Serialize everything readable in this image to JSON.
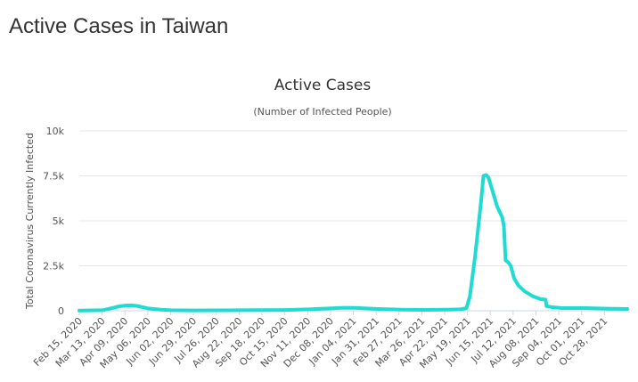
{
  "page": {
    "title": "Active Cases in Taiwan"
  },
  "colors": {
    "series": "#1fdbd1",
    "grid": "#e6e6e6",
    "text": "#333333"
  },
  "chart_data": {
    "type": "line",
    "title": "Active Cases",
    "subtitle": "(Number of Infected People)",
    "ylabel": "Total Coronavirus Currently Infected",
    "ylim": [
      0,
      10000
    ],
    "yticks": [
      {
        "value": 0,
        "label": "0"
      },
      {
        "value": 2500,
        "label": "2.5k"
      },
      {
        "value": 5000,
        "label": "5k"
      },
      {
        "value": 7500,
        "label": "7.5k"
      },
      {
        "value": 10000,
        "label": "10k"
      }
    ],
    "xlim": [
      "2020-02-15",
      "2021-11-20"
    ],
    "xticks": [
      "Feb 15, 2020",
      "Mar 13, 2020",
      "Apr 09, 2020",
      "May 06, 2020",
      "Jun 02, 2020",
      "Jun 29, 2020",
      "Jul 26, 2020",
      "Aug 22, 2020",
      "Sep 18, 2020",
      "Oct 15, 2020",
      "Nov 11, 2020",
      "Dec 08, 2020",
      "Jan 04, 2021",
      "Jan 31, 2021",
      "Feb 27, 2021",
      "Mar 26, 2021",
      "Apr 22, 2021",
      "May 19, 2021",
      "Jun 15, 2021",
      "Jul 12, 2021",
      "Aug 08, 2021",
      "Sep 04, 2021",
      "Oct 01, 2021",
      "Oct 28, 2021"
    ],
    "grid": true,
    "legend": false,
    "series": [
      {
        "color": "#1fdbd1",
        "points": [
          [
            "2020-02-15",
            10
          ],
          [
            "2020-03-13",
            30
          ],
          [
            "2020-03-22",
            120
          ],
          [
            "2020-04-01",
            240
          ],
          [
            "2020-04-09",
            290
          ],
          [
            "2020-04-16",
            300
          ],
          [
            "2020-04-25",
            250
          ],
          [
            "2020-05-06",
            130
          ],
          [
            "2020-05-20",
            60
          ],
          [
            "2020-06-02",
            30
          ],
          [
            "2020-06-29",
            20
          ],
          [
            "2020-07-26",
            25
          ],
          [
            "2020-08-22",
            30
          ],
          [
            "2020-09-18",
            35
          ],
          [
            "2020-10-15",
            45
          ],
          [
            "2020-11-11",
            80
          ],
          [
            "2020-11-25",
            110
          ],
          [
            "2020-12-08",
            140
          ],
          [
            "2020-12-22",
            170
          ],
          [
            "2021-01-04",
            160
          ],
          [
            "2021-01-31",
            100
          ],
          [
            "2021-02-27",
            60
          ],
          [
            "2021-03-26",
            50
          ],
          [
            "2021-04-22",
            60
          ],
          [
            "2021-05-08",
            80
          ],
          [
            "2021-05-15",
            150
          ],
          [
            "2021-05-19",
            800
          ],
          [
            "2021-05-25",
            3000
          ],
          [
            "2021-06-01",
            6000
          ],
          [
            "2021-06-04",
            7500
          ],
          [
            "2021-06-07",
            7550
          ],
          [
            "2021-06-10",
            7400
          ],
          [
            "2021-06-15",
            6600
          ],
          [
            "2021-06-20",
            5800
          ],
          [
            "2021-06-26",
            5200
          ],
          [
            "2021-06-28",
            4700
          ],
          [
            "2021-06-30",
            2800
          ],
          [
            "2021-07-03",
            2700
          ],
          [
            "2021-07-06",
            2500
          ],
          [
            "2021-07-10",
            1800
          ],
          [
            "2021-07-15",
            1400
          ],
          [
            "2021-07-22",
            1100
          ],
          [
            "2021-08-01",
            800
          ],
          [
            "2021-08-10",
            650
          ],
          [
            "2021-08-16",
            620
          ],
          [
            "2021-08-17",
            250
          ],
          [
            "2021-08-24",
            200
          ],
          [
            "2021-09-04",
            150
          ],
          [
            "2021-10-01",
            150
          ],
          [
            "2021-10-28",
            120
          ],
          [
            "2021-11-20",
            100
          ]
        ]
      }
    ]
  }
}
